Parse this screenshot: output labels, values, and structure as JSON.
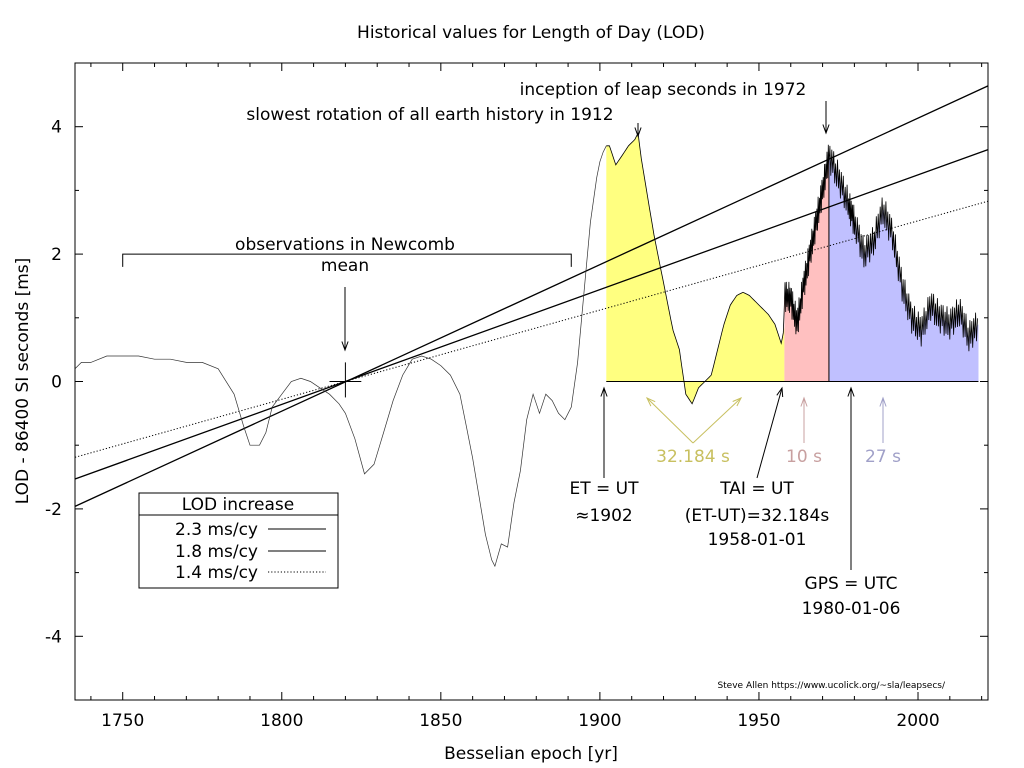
{
  "chart_data": {
    "type": "line",
    "title": "Historical values for Length of Day (LOD)",
    "xlabel": "Besselian epoch [yr]",
    "ylabel": "LOD - 86400 SI seconds [ms]",
    "xlim": [
      1735,
      2022
    ],
    "ylim": [
      -5,
      5
    ],
    "x_ticks": [
      1750,
      1800,
      1850,
      1900,
      1950,
      2000
    ],
    "y_ticks": [
      4,
      2,
      0,
      -2,
      -4
    ],
    "x_tick_labels": [
      "1750",
      "1800",
      "1850",
      "1900",
      "1950",
      "2000"
    ],
    "y_tick_labels": [
      "4",
      "2",
      "0",
      "-2",
      "-4"
    ],
    "grid": false,
    "legend": {
      "title": "LOD increase",
      "placement": "bottom-left",
      "entries": [
        "2.3 ms/cy",
        "1.8 ms/cy",
        "1.4 ms/cy"
      ]
    },
    "series": [
      {
        "name": "2.3 ms/cy",
        "style": "solid",
        "x": [
          1735,
          2022
        ],
        "y": [
          -1.96,
          4.64
        ]
      },
      {
        "name": "1.8 ms/cy",
        "style": "solid",
        "x": [
          1735,
          2022
        ],
        "y": [
          -1.53,
          3.64
        ]
      },
      {
        "name": "1.4 ms/cy",
        "style": "dotted",
        "x": [
          1735,
          2022
        ],
        "y": [
          -1.19,
          2.83
        ]
      },
      {
        "style": "thin",
        "x": [
          1735,
          1737,
          1740,
          1745,
          1750,
          1755,
          1760,
          1765,
          1770,
          1775,
          1780,
          1785,
          1788,
          1790,
          1793,
          1795,
          1797,
          1800,
          1803,
          1806,
          1809,
          1812,
          1815,
          1818,
          1820,
          1823,
          1826,
          1829,
          1832,
          1835,
          1838,
          1841,
          1844,
          1847,
          1850,
          1853,
          1856,
          1858,
          1860,
          1862,
          1864,
          1866,
          1867,
          1869,
          1871,
          1873,
          1875,
          1877,
          1879,
          1881,
          1883,
          1885,
          1887,
          1889,
          1891,
          1893,
          1895,
          1897,
          1899,
          1900,
          1901,
          1902
        ],
        "y": [
          0.2,
          0.3,
          0.3,
          0.4,
          0.4,
          0.4,
          0.35,
          0.35,
          0.3,
          0.3,
          0.2,
          -0.2,
          -0.7,
          -1.0,
          -1.0,
          -0.8,
          -0.4,
          -0.2,
          0.0,
          0.05,
          0.0,
          -0.1,
          -0.2,
          -0.35,
          -0.5,
          -0.9,
          -1.45,
          -1.3,
          -0.8,
          -0.3,
          0.1,
          0.35,
          0.4,
          0.35,
          0.25,
          0.1,
          -0.2,
          -0.7,
          -1.2,
          -1.8,
          -2.4,
          -2.8,
          -2.9,
          -2.55,
          -2.6,
          -1.9,
          -1.4,
          -0.6,
          -0.2,
          -0.5,
          -0.2,
          -0.3,
          -0.5,
          -0.6,
          -0.4,
          0.3,
          1.4,
          2.5,
          3.2,
          3.45,
          3.6,
          3.7
        ]
      }
    ],
    "filled_regions": [
      {
        "label": "32.184 s",
        "color": "#ffff80",
        "x": [
          1902,
          1903,
          1905,
          1907,
          1909,
          1911,
          1912,
          1913,
          1915,
          1917,
          1919,
          1921,
          1923,
          1925,
          1927,
          1929,
          1931,
          1933,
          1935,
          1937,
          1939,
          1941,
          1943,
          1945,
          1947,
          1949,
          1951,
          1953,
          1955,
          1957,
          1958
        ],
        "y": [
          3.7,
          3.7,
          3.4,
          3.55,
          3.7,
          3.8,
          3.9,
          3.5,
          2.9,
          2.3,
          1.8,
          1.3,
          0.8,
          0.5,
          -0.2,
          -0.35,
          -0.1,
          0.0,
          0.1,
          0.5,
          0.9,
          1.2,
          1.35,
          1.4,
          1.35,
          1.25,
          1.15,
          1.05,
          0.9,
          0.6,
          0.85
        ]
      },
      {
        "label": "10 s",
        "color": "#ffc0c0",
        "x": [
          1958,
          1960,
          1962,
          1964,
          1966,
          1968,
          1970,
          1972
        ],
        "y": [
          1.35,
          1.3,
          0.9,
          1.5,
          2.0,
          2.5,
          3.0,
          3.55
        ]
      },
      {
        "label": "27 s",
        "color": "#c0c0ff",
        "x": [
          1972,
          1975,
          1978,
          1980,
          1983,
          1986,
          1989,
          1992,
          1995,
          1998,
          2001,
          2004,
          2007,
          2010,
          2013,
          2016,
          2019
        ],
        "y": [
          3.55,
          3.2,
          2.8,
          2.5,
          2.0,
          2.2,
          2.7,
          2.3,
          1.5,
          1.0,
          0.8,
          1.2,
          1.0,
          0.9,
          1.1,
          0.7,
          0.9
        ]
      }
    ],
    "annotations": {
      "slowest": "slowest rotation of all earth history in 1912",
      "inception": "inception of leap seconds in 1972",
      "newcomb_line1": "observations in Newcomb",
      "newcomb_line2": "mean",
      "et_ut": "ET = UT",
      "et_ut_year": "≈1902",
      "tai_ut": "TAI = UT",
      "tai_offset": "(ET-UT)=32.184s",
      "tai_date": "1958-01-01",
      "gps_utc": "GPS = UTC",
      "gps_date": "1980-01-06",
      "label_32": "32.184 s",
      "label_10": "10 s",
      "label_27": "27 s",
      "credit": "Steve Allen  https://www.ucolick.org/~sla/leapsecs/"
    },
    "colors": {
      "yellow_fill": "#ffff80",
      "pink_fill": "#ffc0c0",
      "blue_fill": "#c0c0ff",
      "label_32": "#c8c060",
      "label_10": "#c8a0a0",
      "label_27": "#a0a0c8",
      "arrow_32": "#c8c060",
      "arrow_10": "#c8a0a0",
      "arrow_27": "#a0a0c8"
    }
  }
}
